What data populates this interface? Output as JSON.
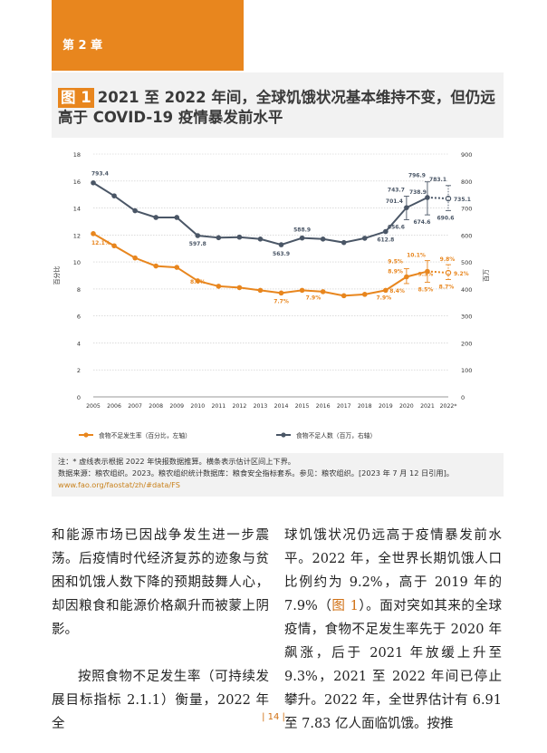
{
  "chapter": {
    "label": "第 2 章"
  },
  "figure": {
    "tag": "图 1",
    "title": "2021 至 2022 年间，全球饥饿状况基本维持不变，但仍远高于 COVID-19 疫情暴发前水平"
  },
  "chart_data": {
    "type": "line",
    "x": [
      "2005",
      "2006",
      "2007",
      "2008",
      "2009",
      "2010",
      "2011",
      "2012",
      "2013",
      "2014",
      "2015",
      "2016",
      "2017",
      "2018",
      "2019",
      "2020",
      "2021",
      "2022*"
    ],
    "y_left": {
      "label": "百分比",
      "min": 0,
      "max": 18,
      "ticks": [
        0,
        2,
        4,
        6,
        8,
        10,
        12,
        14,
        16,
        18
      ]
    },
    "y_right": {
      "label": "百万",
      "min": 0,
      "max": 900,
      "ticks": [
        0,
        100,
        200,
        300,
        400,
        500,
        600,
        700,
        800,
        900
      ]
    },
    "colors": {
      "prevalence": "#e8861e",
      "number": "#4a5666"
    },
    "series": [
      {
        "name": "食物不足发生率（百分比，左轴）",
        "axis": "left",
        "values": [
          12.1,
          11.2,
          10.3,
          9.7,
          9.6,
          8.6,
          8.2,
          8.1,
          7.9,
          7.7,
          7.9,
          7.8,
          7.5,
          7.6,
          7.9,
          8.9,
          9.3,
          9.2
        ]
      },
      {
        "name": "食物不足人数（百万，右轴）",
        "axis": "right",
        "values": [
          793.4,
          745,
          690,
          665,
          665,
          597.8,
          590,
          592,
          585,
          563.9,
          588.9,
          585,
          572,
          588,
          612.8,
          701.4,
          738.9,
          735.1
        ]
      }
    ],
    "ranges": {
      "number": [
        {
          "year": "2020",
          "low": 656.6,
          "high": 743.7
        },
        {
          "year": "2021",
          "low": 674.6,
          "high": 796.9
        },
        {
          "year": "2022*",
          "low": 690.6,
          "high": 783.1
        }
      ],
      "prevalence": [
        {
          "year": "2020",
          "low": 8.4,
          "high": 9.5
        },
        {
          "year": "2021",
          "low": 8.5,
          "high": 10.1
        },
        {
          "year": "2022*",
          "low": 8.7,
          "high": 9.8
        }
      ]
    },
    "labels": {
      "number": [
        {
          "x": "2005",
          "text": "793.4"
        },
        {
          "x": "2010",
          "text": "597.8"
        },
        {
          "x": "2014",
          "text": "563.9"
        },
        {
          "x": "2015",
          "text": "588.9"
        },
        {
          "x": "2019",
          "text": "612.8"
        },
        {
          "x": "2020",
          "text": "701.4"
        },
        {
          "x": "2020",
          "text": "743.7"
        },
        {
          "x": "2020",
          "text": "656.6"
        },
        {
          "x": "2021",
          "text": "796.9"
        },
        {
          "x": "2021",
          "text": "738.9"
        },
        {
          "x": "2021",
          "text": "674.6"
        },
        {
          "x": "2022*",
          "text": "783.1"
        },
        {
          "x": "2022*",
          "text": "735.1"
        },
        {
          "x": "2022*",
          "text": "690.6"
        }
      ],
      "prevalence": [
        {
          "x": "2005",
          "text": "12.1%"
        },
        {
          "x": "2010",
          "text": "8.6%"
        },
        {
          "x": "2014",
          "text": "7.7%"
        },
        {
          "x": "2015",
          "text": "7.9%"
        },
        {
          "x": "2019",
          "text": "7.9%"
        },
        {
          "x": "2020",
          "text": "8.9%"
        },
        {
          "x": "2020",
          "text": "9.5%"
        },
        {
          "x": "2020",
          "text": "8.4%"
        },
        {
          "x": "2021",
          "text": "10.1%"
        },
        {
          "x": "2021",
          "text": "9.3%"
        },
        {
          "x": "2021",
          "text": "8.5%"
        },
        {
          "x": "2022*",
          "text": "9.8%"
        },
        {
          "x": "2022*",
          "text": "9.2%"
        },
        {
          "x": "2022*",
          "text": "8.7%"
        }
      ]
    },
    "legend": {
      "placement": "bottom"
    }
  },
  "notes": {
    "note": "注：* 虚线表示根据 2022 年快报数据推算。横条表示估计区间上下界。",
    "source": "数据来源：粮农组织。2023。粮农组织统计数据库：粮食安全指标套系。参见：粮农组织。[2023 年 7 月 12 日引用]。",
    "url": "www.fao.org/faostat/zh/#data/FS"
  },
  "body": {
    "left_p1": "和能源市场已因战争发生进一步震荡。后疫情时代经济复苏的迹象与贫困和饥饿人数下降的预期鼓舞人心，却因粮食和能源价格飙升而被蒙上阴影。",
    "left_p2": "按照食物不足发生率（可持续发展目标指标 2.1.1）衡量，2022 年全",
    "right_a": "球饥饿状况仍远高于疫情暴发前水平。2022 年，全世界长期饥饿人口比例约为 9.2%，高于 2019 年的 7.9%（",
    "right_ref": "图 1",
    "right_b": "）。面对突如其来的全球疫情，食物不足发生率先于 2020 年飙涨，后于 2021 年放缓上升至 9.3%，2021 至 2022 年间已停止攀升。2022 年，全世界估计有 6.91 至 7.83 亿人面临饥饿。按推"
  },
  "page": {
    "number": "| 14 |"
  }
}
